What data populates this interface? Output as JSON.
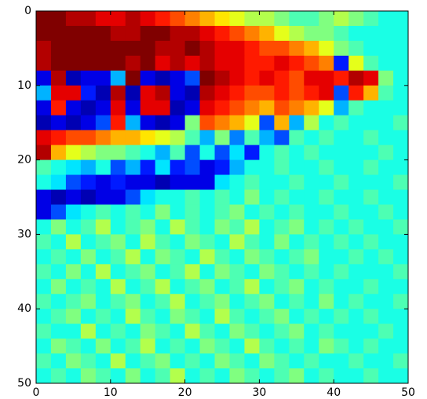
{
  "chart_data": {
    "type": "heatmap",
    "colormap": "jet",
    "xlim": [
      0,
      50
    ],
    "ylim": [
      50,
      0
    ],
    "xticks": [
      0,
      10,
      20,
      30,
      40,
      50
    ],
    "yticks": [
      0,
      10,
      20,
      30,
      40,
      50
    ],
    "values": [
      [
        1,
        1,
        0.95,
        0.95,
        0.9,
        0.9,
        0.95,
        0.9,
        0.85,
        0.8,
        0.75,
        0.7,
        0.65,
        0.6,
        0.55,
        0.55,
        0.5,
        0.45,
        0.45,
        0.5,
        0.55,
        0.5,
        0.45,
        0.4,
        0.4
      ],
      [
        1,
        1,
        1,
        1,
        1,
        0.95,
        0.95,
        1,
        1,
        0.95,
        0.95,
        0.9,
        0.85,
        0.8,
        0.75,
        0.7,
        0.6,
        0.55,
        0.5,
        0.5,
        0.45,
        0.4,
        0.4,
        0.4,
        0.4
      ],
      [
        0.95,
        1,
        1,
        1,
        1,
        1,
        1,
        1,
        0.95,
        0.95,
        1,
        0.95,
        0.9,
        0.9,
        0.85,
        0.8,
        0.8,
        0.75,
        0.7,
        0.6,
        0.5,
        0.45,
        0.4,
        0.4,
        0.4
      ],
      [
        0.95,
        1,
        1,
        1,
        1,
        1,
        0.95,
        1,
        0.9,
        0.95,
        0.9,
        0.95,
        0.9,
        0.9,
        0.85,
        0.85,
        0.9,
        0.85,
        0.8,
        0.75,
        0.15,
        0.6,
        0.45,
        0.4,
        0.4
      ],
      [
        0.1,
        0.95,
        0.05,
        0.1,
        0.1,
        0.3,
        1,
        0.1,
        0.05,
        0.1,
        0.2,
        1,
        0.95,
        0.9,
        0.85,
        0.9,
        0.85,
        0.8,
        0.9,
        0.9,
        0.85,
        0.95,
        0.9,
        0.5,
        0.4
      ],
      [
        0.3,
        0.9,
        0.9,
        0.15,
        0.05,
        0.95,
        0.05,
        0.9,
        0.95,
        0.1,
        0.05,
        0.95,
        0.9,
        0.85,
        0.8,
        0.8,
        0.85,
        0.8,
        0.85,
        0.9,
        0.2,
        0.85,
        0.7,
        0.45,
        0.4
      ],
      [
        0.1,
        0.85,
        0.1,
        0.05,
        0.1,
        0.9,
        0.1,
        0.9,
        0.9,
        0.05,
        0.1,
        0.9,
        0.85,
        0.8,
        0.75,
        0.7,
        0.8,
        0.75,
        0.7,
        0.6,
        0.3,
        0.45,
        0.4,
        0.4,
        0.4
      ],
      [
        0.05,
        0.1,
        0.05,
        0.1,
        0.2,
        0.85,
        0.3,
        0.1,
        0.05,
        0.1,
        0.5,
        0.8,
        0.75,
        0.7,
        0.6,
        0.2,
        0.7,
        0.3,
        0.55,
        0.4,
        0.45,
        0.4,
        0.4,
        0.4,
        0.45
      ],
      [
        0.9,
        0.85,
        0.8,
        0.8,
        0.75,
        0.7,
        0.7,
        0.65,
        0.6,
        0.55,
        0.45,
        0.3,
        0.5,
        0.25,
        0.45,
        0.3,
        0.2,
        0.45,
        0.4,
        0.45,
        0.4,
        0.4,
        0.45,
        0.4,
        0.4
      ],
      [
        0.95,
        0.7,
        0.6,
        0.55,
        0.5,
        0.5,
        0.45,
        0.4,
        0.3,
        0.45,
        0.2,
        0.4,
        0.2,
        0.35,
        0.15,
        0.4,
        0.45,
        0.4,
        0.45,
        0.4,
        0.4,
        0.4,
        0.4,
        0.45,
        0.4
      ],
      [
        0.45,
        0.4,
        0.35,
        0.3,
        0.4,
        0.2,
        0.3,
        0.15,
        0.35,
        0.15,
        0.2,
        0.1,
        0.15,
        0.3,
        0.4,
        0.4,
        0.45,
        0.4,
        0.4,
        0.45,
        0.4,
        0.4,
        0.45,
        0.4,
        0.4
      ],
      [
        0.4,
        0.35,
        0.2,
        0.15,
        0.1,
        0.15,
        0.1,
        0.1,
        0.05,
        0.1,
        0.1,
        0.1,
        0.35,
        0.4,
        0.45,
        0.4,
        0.4,
        0.45,
        0.4,
        0.4,
        0.45,
        0.4,
        0.4,
        0.4,
        0.45
      ],
      [
        0.1,
        0.05,
        0.1,
        0.05,
        0.1,
        0.1,
        0.2,
        0.35,
        0.4,
        0.4,
        0.45,
        0.4,
        0.45,
        0.4,
        0.5,
        0.4,
        0.45,
        0.4,
        0.4,
        0.45,
        0.4,
        0.4,
        0.45,
        0.4,
        0.4
      ],
      [
        0.1,
        0.2,
        0.35,
        0.4,
        0.45,
        0.4,
        0.45,
        0.4,
        0.5,
        0.4,
        0.45,
        0.4,
        0.45,
        0.5,
        0.4,
        0.45,
        0.4,
        0.45,
        0.4,
        0.4,
        0.45,
        0.4,
        0.4,
        0.45,
        0.4
      ],
      [
        0.4,
        0.5,
        0.4,
        0.45,
        0.55,
        0.4,
        0.45,
        0.5,
        0.4,
        0.55,
        0.45,
        0.4,
        0.5,
        0.45,
        0.55,
        0.4,
        0.45,
        0.5,
        0.4,
        0.45,
        0.4,
        0.45,
        0.4,
        0.4,
        0.45
      ],
      [
        0.45,
        0.4,
        0.55,
        0.4,
        0.45,
        0.5,
        0.4,
        0.55,
        0.45,
        0.4,
        0.5,
        0.45,
        0.4,
        0.55,
        0.45,
        0.4,
        0.5,
        0.4,
        0.45,
        0.4,
        0.45,
        0.4,
        0.45,
        0.4,
        0.4
      ],
      [
        0.4,
        0.45,
        0.4,
        0.5,
        0.4,
        0.45,
        0.55,
        0.4,
        0.5,
        0.45,
        0.4,
        0.55,
        0.45,
        0.4,
        0.5,
        0.45,
        0.4,
        0.45,
        0.5,
        0.4,
        0.4,
        0.45,
        0.4,
        0.45,
        0.4
      ],
      [
        0.45,
        0.4,
        0.5,
        0.4,
        0.55,
        0.4,
        0.45,
        0.5,
        0.4,
        0.45,
        0.55,
        0.4,
        0.5,
        0.45,
        0.4,
        0.5,
        0.45,
        0.4,
        0.45,
        0.4,
        0.45,
        0.4,
        0.4,
        0.4,
        0.45
      ],
      [
        0.4,
        0.5,
        0.4,
        0.45,
        0.4,
        0.55,
        0.4,
        0.45,
        0.55,
        0.4,
        0.45,
        0.5,
        0.4,
        0.45,
        0.55,
        0.4,
        0.45,
        0.5,
        0.4,
        0.45,
        0.4,
        0.4,
        0.45,
        0.4,
        0.4
      ],
      [
        0.45,
        0.4,
        0.45,
        0.5,
        0.4,
        0.45,
        0.5,
        0.4,
        0.45,
        0.55,
        0.4,
        0.45,
        0.5,
        0.4,
        0.45,
        0.5,
        0.4,
        0.45,
        0.4,
        0.5,
        0.4,
        0.45,
        0.4,
        0.4,
        0.45
      ],
      [
        0.4,
        0.45,
        0.5,
        0.4,
        0.45,
        0.4,
        0.55,
        0.45,
        0.4,
        0.5,
        0.45,
        0.4,
        0.55,
        0.45,
        0.4,
        0.45,
        0.5,
        0.4,
        0.45,
        0.4,
        0.45,
        0.4,
        0.45,
        0.4,
        0.4
      ],
      [
        0.45,
        0.4,
        0.4,
        0.55,
        0.4,
        0.45,
        0.4,
        0.5,
        0.45,
        0.4,
        0.55,
        0.45,
        0.4,
        0.5,
        0.45,
        0.4,
        0.45,
        0.5,
        0.4,
        0.45,
        0.4,
        0.4,
        0.4,
        0.45,
        0.4
      ],
      [
        0.4,
        0.5,
        0.45,
        0.4,
        0.5,
        0.4,
        0.45,
        0.55,
        0.4,
        0.45,
        0.4,
        0.5,
        0.45,
        0.4,
        0.55,
        0.45,
        0.4,
        0.45,
        0.4,
        0.5,
        0.45,
        0.4,
        0.45,
        0.4,
        0.4
      ],
      [
        0.45,
        0.4,
        0.5,
        0.45,
        0.4,
        0.55,
        0.4,
        0.45,
        0.5,
        0.4,
        0.45,
        0.4,
        0.5,
        0.45,
        0.4,
        0.5,
        0.45,
        0.4,
        0.45,
        0.4,
        0.4,
        0.45,
        0.4,
        0.4,
        0.45
      ],
      [
        0.4,
        0.45,
        0.4,
        0.5,
        0.45,
        0.4,
        0.5,
        0.4,
        0.45,
        0.55,
        0.4,
        0.45,
        0.4,
        0.5,
        0.45,
        0.4,
        0.45,
        0.5,
        0.4,
        0.45,
        0.4,
        0.4,
        0.45,
        0.4,
        0.4
      ]
    ]
  }
}
